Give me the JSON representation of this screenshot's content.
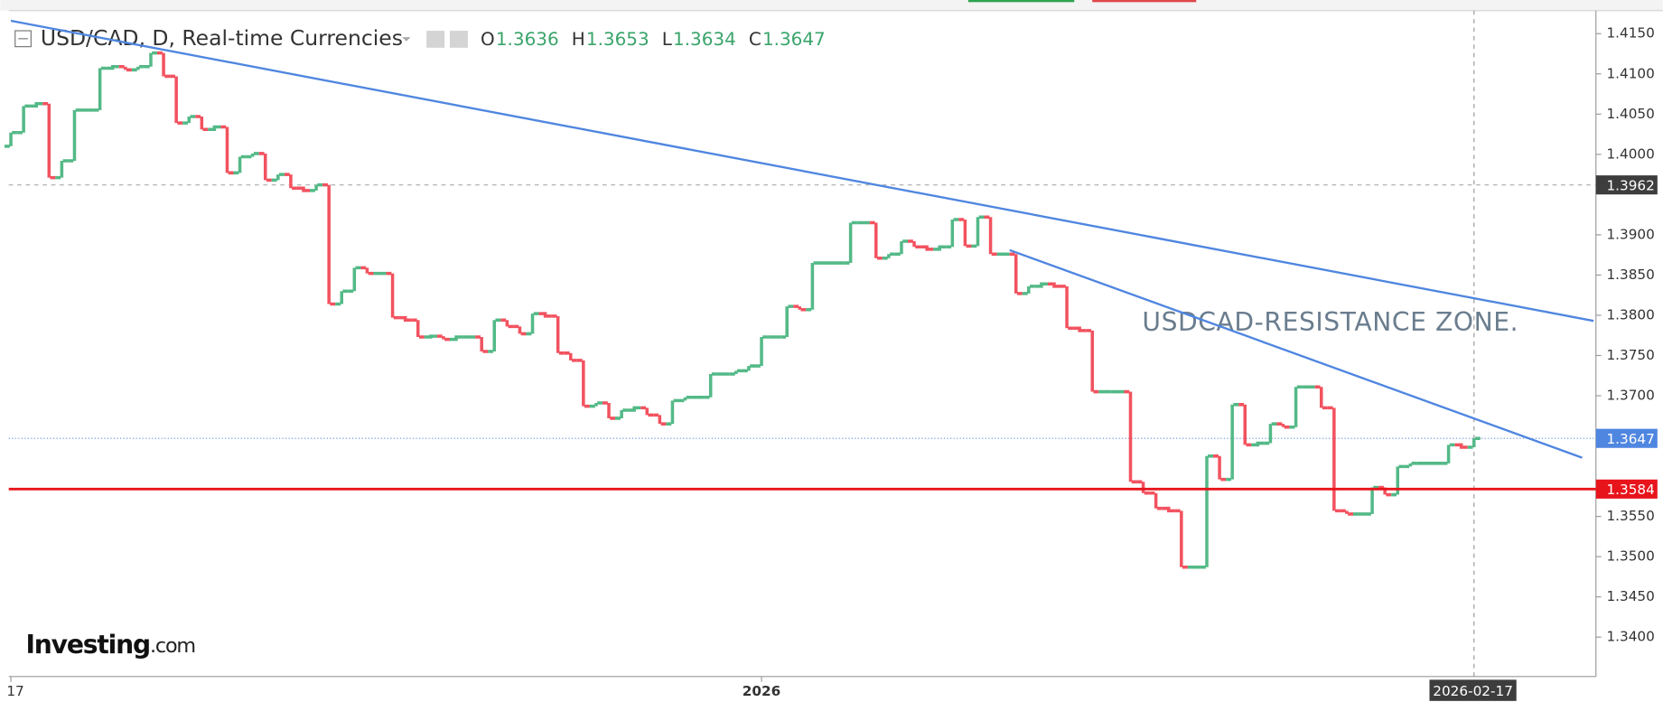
{
  "chart_data": {
    "type": "ohlc",
    "header": {
      "symbol": "USD/CAD, D, Real-time Currencies",
      "ohlc": [
        {
          "label": "O",
          "value": 1.3636
        },
        {
          "label": "H",
          "value": 1.3653
        },
        {
          "label": "L",
          "value": 1.3634
        },
        {
          "label": "C",
          "value": 1.3647
        }
      ]
    },
    "annotation": "USDCAD-RESISTANCE ZONE.",
    "brand": "Investing",
    "brand_suffix": ".com",
    "categories": [
      "17",
      null,
      null,
      null,
      null,
      null,
      null,
      null,
      null,
      null,
      null,
      null,
      null,
      null,
      null,
      null,
      null,
      null,
      null,
      null,
      null,
      null,
      null,
      null,
      null,
      null,
      null,
      null,
      null,
      null,
      null,
      null,
      null,
      null,
      null,
      null,
      null,
      null,
      null,
      null,
      null,
      null,
      null,
      null,
      null,
      null,
      null,
      null,
      null,
      null,
      null,
      null,
      null,
      null,
      null,
      null,
      null,
      null,
      null,
      "2026",
      null,
      null,
      null,
      null,
      null,
      null,
      null,
      null,
      null,
      null,
      null,
      null,
      null,
      null,
      null,
      null,
      null,
      null,
      null,
      null,
      null,
      null,
      null,
      null,
      null,
      null,
      null,
      null,
      null,
      null,
      null,
      null,
      null,
      null,
      null,
      null,
      null,
      null,
      null,
      null,
      null,
      null,
      null,
      null,
      null,
      null,
      null,
      null,
      null,
      null,
      null,
      null,
      null,
      null,
      null,
      "2026-02-17"
    ],
    "open": [
      1.401,
      1.4027,
      1.406,
      1.4063,
      1.3971,
      1.3992,
      1.4055,
      1.4055,
      1.4107,
      1.4109,
      1.4105,
      1.4109,
      1.4126,
      1.4097,
      1.4039,
      1.4047,
      1.4031,
      1.4034,
      1.3977,
      1.3997,
      1.4001,
      1.3968,
      1.3975,
      1.3958,
      1.3955,
      1.3962,
      1.3814,
      1.383,
      1.3859,
      1.3852,
      1.3852,
      1.3797,
      1.3794,
      1.3773,
      1.3774,
      1.377,
      1.3773,
      1.3773,
      1.3755,
      1.3794,
      1.3786,
      1.3777,
      1.3802,
      1.3799,
      1.3753,
      1.3744,
      1.3687,
      1.3691,
      1.3672,
      1.3682,
      1.3685,
      1.3676,
      1.3665,
      1.3694,
      1.3698,
      1.3698,
      1.3727,
      1.3727,
      1.3731,
      1.3737,
      1.3773,
      1.3773,
      1.3811,
      1.3807,
      1.3865,
      1.3865,
      1.3865,
      1.3915,
      1.3915,
      1.3871,
      1.3876,
      1.3892,
      1.3885,
      1.3882,
      1.3885,
      1.3919,
      1.3886,
      1.3922,
      1.3876,
      1.3876,
      1.3827,
      1.3836,
      1.3839,
      1.3836,
      1.3784,
      1.3781,
      1.3705,
      1.3705,
      1.3705,
      1.3593,
      1.3579,
      1.356,
      1.3557,
      1.3487,
      1.3487,
      1.3625,
      1.3596,
      1.3689,
      1.3639,
      1.3641,
      1.3665,
      1.3661,
      1.3711,
      1.3711,
      1.3685,
      1.3557,
      1.3553,
      1.3553,
      1.3586,
      1.3577,
      1.3612,
      1.3616,
      1.3616,
      1.3616,
      1.3639,
      1.3636
    ],
    "close": [
      1.4027,
      1.406,
      1.4063,
      1.3971,
      1.3992,
      1.4055,
      1.4055,
      1.4107,
      1.4109,
      1.4105,
      1.4109,
      1.4126,
      1.4097,
      1.4039,
      1.4047,
      1.4031,
      1.4034,
      1.3977,
      1.3997,
      1.4001,
      1.3968,
      1.3975,
      1.3958,
      1.3955,
      1.3962,
      1.3814,
      1.383,
      1.3859,
      1.3852,
      1.3852,
      1.3797,
      1.3794,
      1.3773,
      1.3774,
      1.377,
      1.3773,
      1.3773,
      1.3755,
      1.3794,
      1.3786,
      1.3777,
      1.3802,
      1.3799,
      1.3753,
      1.3744,
      1.3687,
      1.3691,
      1.3672,
      1.3682,
      1.3685,
      1.3676,
      1.3665,
      1.3694,
      1.3698,
      1.3698,
      1.3727,
      1.3727,
      1.3731,
      1.3737,
      1.3773,
      1.3773,
      1.3811,
      1.3807,
      1.3865,
      1.3865,
      1.3865,
      1.3915,
      1.3915,
      1.3871,
      1.3876,
      1.3892,
      1.3885,
      1.3882,
      1.3885,
      1.3919,
      1.3886,
      1.3922,
      1.3876,
      1.3876,
      1.3827,
      1.3836,
      1.3839,
      1.3836,
      1.3784,
      1.3781,
      1.3705,
      1.3705,
      1.3705,
      1.3593,
      1.3579,
      1.356,
      1.3557,
      1.3487,
      1.3487,
      1.3625,
      1.3596,
      1.3689,
      1.3639,
      1.3641,
      1.3665,
      1.3661,
      1.3711,
      1.3711,
      1.3685,
      1.3557,
      1.3553,
      1.3553,
      1.3586,
      1.3577,
      1.3612,
      1.3616,
      1.3616,
      1.3616,
      1.3639,
      1.3636,
      1.3647
    ],
    "up_color": "#53b987",
    "down_color": "#f2525f",
    "ylim": [
      1.3351,
      1.4176
    ],
    "yticks": [
      {
        "value": 1.415,
        "label": "1.4150"
      },
      {
        "value": 1.41,
        "label": "1.4100"
      },
      {
        "value": 1.405,
        "label": "1.4050"
      },
      {
        "value": 1.4,
        "label": "1.4000"
      },
      {
        "value": 1.39,
        "label": "1.3900"
      },
      {
        "value": 1.385,
        "label": "1.3850"
      },
      {
        "value": 1.38,
        "label": "1.3800"
      },
      {
        "value": 1.375,
        "label": "1.3750"
      },
      {
        "value": 1.37,
        "label": "1.3700"
      },
      {
        "value": 1.355,
        "label": "1.3550"
      },
      {
        "value": 1.35,
        "label": "1.3500"
      },
      {
        "value": 1.345,
        "label": "1.3450"
      },
      {
        "value": 1.34,
        "label": "1.3400"
      }
    ],
    "crosshair_price": 1.3962,
    "last_price": 1.3647,
    "support_level": 1.3584,
    "trendlines": [
      {
        "x": [
          0,
          124.4
        ],
        "y": [
          1.4166,
          1.3793
        ]
      },
      {
        "x": [
          78.5,
          123.5
        ],
        "y": [
          1.3881,
          1.3623
        ]
      }
    ]
  }
}
